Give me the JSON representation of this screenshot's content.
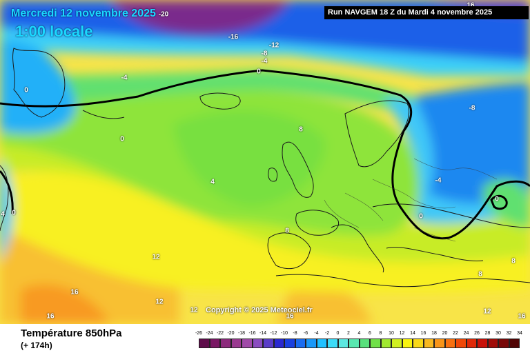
{
  "header": {
    "date_label": "Mercredi 12 novembre 2025",
    "time_label": "1:00 locale",
    "run_label": "Run NAVGEM 18 Z du Mardi 4 novembre 2025"
  },
  "map": {
    "copyright": "Copyright © 2025 Meteociel.fr",
    "isotherm_labels": [
      "-20",
      "-16",
      "-12",
      "-8",
      "-4",
      "0",
      "-4",
      "0",
      "0",
      "-8",
      "8",
      "4",
      "-4",
      "0",
      "0",
      "8",
      "12",
      "12",
      "12",
      "16",
      "16",
      "8",
      "8",
      "12",
      "16",
      "4",
      "0",
      "16",
      "16",
      "-16"
    ]
  },
  "footer": {
    "parameter": "Température 850hPa",
    "lead_time": "(+ 174h)"
  },
  "legend": {
    "values": [
      "-26",
      "-24",
      "-22",
      "-20",
      "-18",
      "-16",
      "-14",
      "-12",
      "-10",
      "-8",
      "-6",
      "-4",
      "-2",
      "0",
      "2",
      "4",
      "6",
      "8",
      "10",
      "12",
      "14",
      "16",
      "18",
      "20",
      "22",
      "24",
      "26",
      "28",
      "30",
      "32",
      "34"
    ],
    "colors": [
      "#5e0c4a",
      "#7a1764",
      "#8c2a7c",
      "#9a3a90",
      "#a04aa8",
      "#8a4cc0",
      "#5a3cc8",
      "#2a28d0",
      "#1a40e0",
      "#1a6cf0",
      "#1a98f8",
      "#20c0ff",
      "#3cdcf8",
      "#5ce8e0",
      "#58e8b0",
      "#58e07c",
      "#70e048",
      "#a0e830",
      "#d0f020",
      "#f8f410",
      "#f8d818",
      "#f8b820",
      "#f89418",
      "#f87010",
      "#f04808",
      "#e02808",
      "#c81008",
      "#a00c08",
      "#780808",
      "#500404"
    ]
  }
}
